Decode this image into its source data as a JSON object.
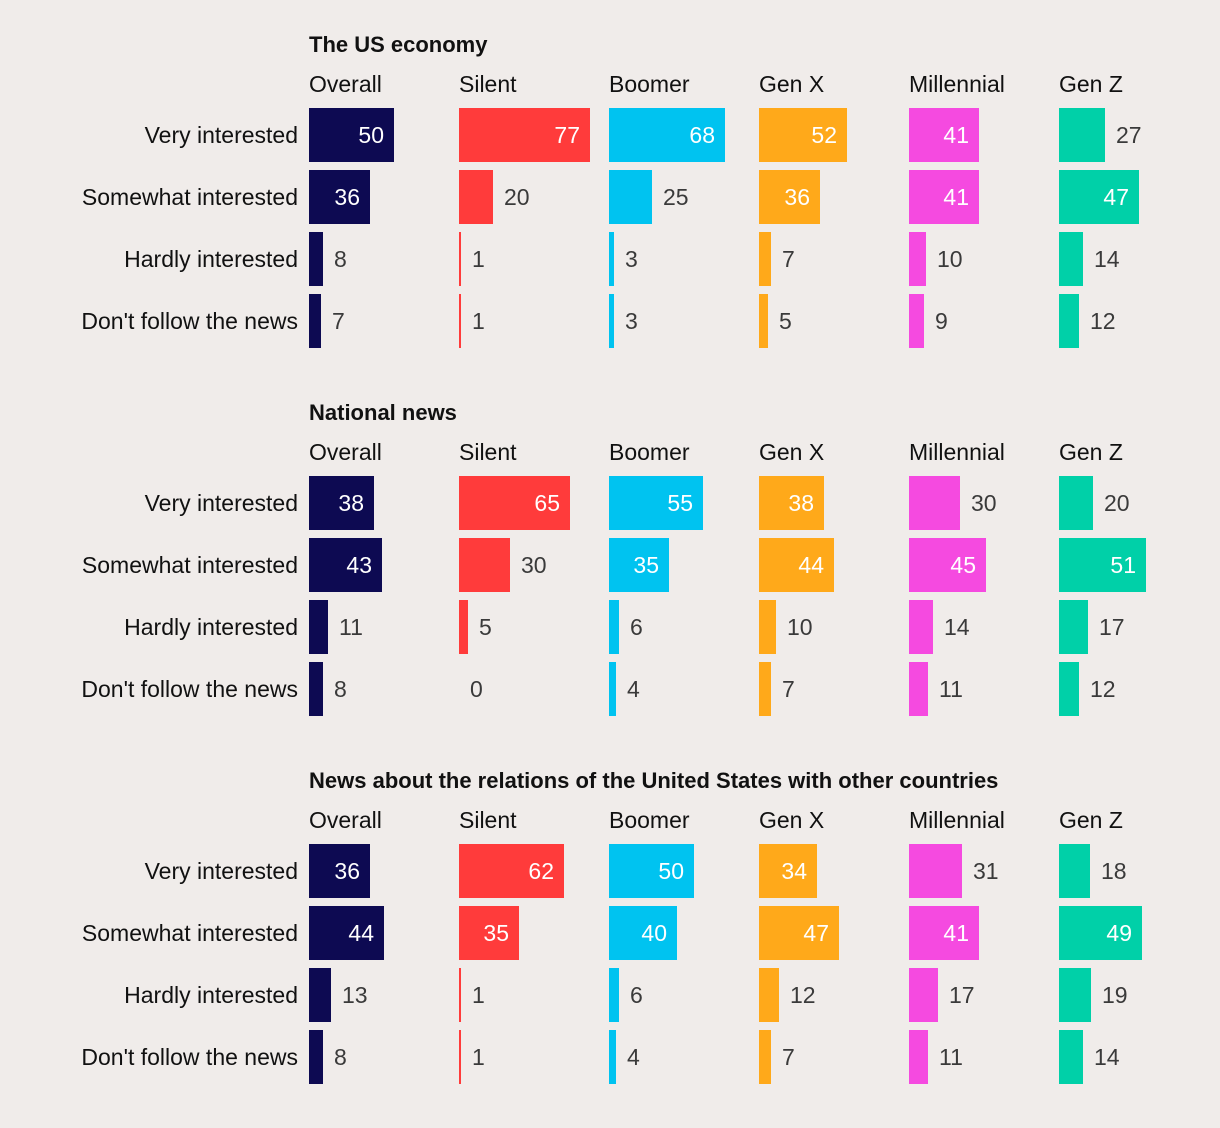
{
  "chart_data": {
    "type": "bar",
    "orientation": "horizontal",
    "groups": [
      "Overall",
      "Silent",
      "Boomer",
      "Gen X",
      "Millennial",
      "Gen Z"
    ],
    "colors": [
      "#0d0a52",
      "#ff3b3b",
      "#00c3f0",
      "#ffa91a",
      "#f54ae0",
      "#00d0a8"
    ],
    "categories": [
      "Very interested",
      "Somewhat interested",
      "Hardly interested",
      "Don't follow the news"
    ],
    "panels": [
      {
        "title": "The US economy",
        "values": [
          [
            50,
            77,
            68,
            52,
            41,
            27
          ],
          [
            36,
            20,
            25,
            36,
            41,
            47
          ],
          [
            8,
            1,
            3,
            7,
            10,
            14
          ],
          [
            7,
            1,
            3,
            5,
            9,
            12
          ]
        ]
      },
      {
        "title": "National news",
        "values": [
          [
            38,
            65,
            55,
            38,
            30,
            20
          ],
          [
            43,
            30,
            35,
            44,
            45,
            51
          ],
          [
            11,
            5,
            6,
            10,
            14,
            17
          ],
          [
            8,
            0,
            4,
            7,
            11,
            12
          ]
        ]
      },
      {
        "title": "News about the relations of the United States with other countries",
        "values": [
          [
            36,
            62,
            50,
            34,
            31,
            18
          ],
          [
            44,
            35,
            40,
            47,
            41,
            49
          ],
          [
            13,
            1,
            6,
            12,
            17,
            19
          ],
          [
            8,
            1,
            4,
            7,
            11,
            14
          ]
        ]
      }
    ]
  }
}
